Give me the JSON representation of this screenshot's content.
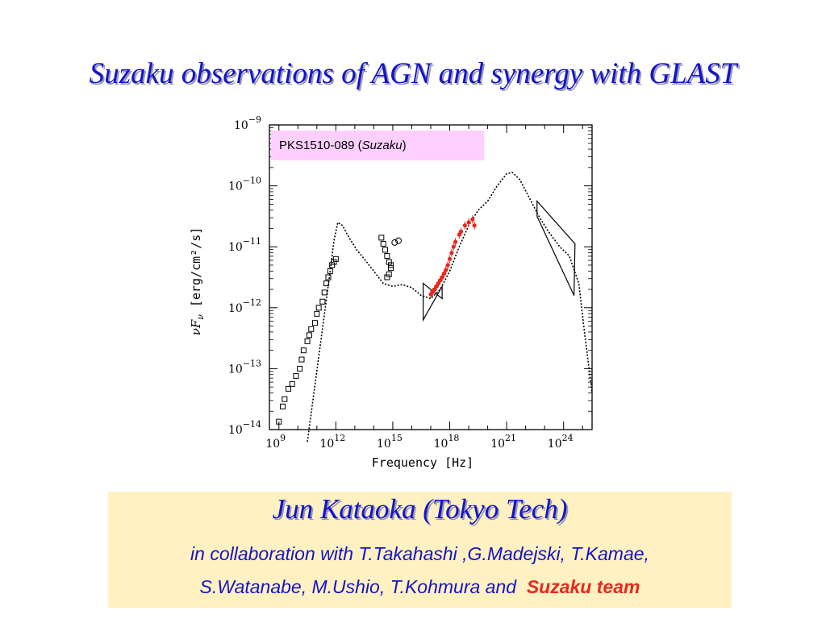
{
  "slide": {
    "title": "Suzaku observations of AGN and synergy with GLAST"
  },
  "legend": {
    "prefix": "PKS1510-089 (",
    "italic": "Suzaku",
    "suffix": ")"
  },
  "credits": {
    "author": "Jun Kataoka (Tokyo Tech)",
    "line1": "in collaboration with T.Takahashi ,G.Madejski, T.Kamae,",
    "line2_prefix": "S.Watanabe, M.Ushio, T.Kohmura and",
    "team": "Suzaku team"
  },
  "colors": {
    "title": "#1414c8",
    "team": "#e8281e",
    "legend_bg": "#ffd0ff",
    "panel_bg": "#fff1c1",
    "suzaku_points": "#e8281e"
  },
  "chart_data": {
    "type": "scatter",
    "title": "",
    "xlabel": "Frequency",
    "xunit": "Hz",
    "ylabel_symbol": "νF",
    "ylabel_sub": "ν",
    "yunit": "erg/cm²/s",
    "xscale": "log",
    "yscale": "log",
    "xlim_log": [
      8.5,
      25.5
    ],
    "ylim_log": [
      -14,
      -9
    ],
    "xticks": [
      {
        "exp": "9",
        "log": 9
      },
      {
        "exp": "12",
        "log": 12
      },
      {
        "exp": "15",
        "log": 15
      },
      {
        "exp": "18",
        "log": 18
      },
      {
        "exp": "21",
        "log": 21
      },
      {
        "exp": "24",
        "log": 24
      }
    ],
    "yticks": [
      {
        "exp": "−9",
        "log": -9
      },
      {
        "exp": "−10",
        "log": -10
      },
      {
        "exp": "−11",
        "log": -11
      },
      {
        "exp": "−12",
        "log": -12
      },
      {
        "exp": "−13",
        "log": -13
      },
      {
        "exp": "−14",
        "log": -14
      }
    ],
    "series": [
      {
        "kind": "archival-radio-optical",
        "marker": "open-square",
        "color": "#000000",
        "points": [
          [
            9.0,
            -13.87
          ],
          [
            9.2,
            -13.62
          ],
          [
            9.3,
            -13.5
          ],
          [
            9.5,
            -13.33
          ],
          [
            9.7,
            -13.25
          ],
          [
            9.9,
            -13.12
          ],
          [
            10.1,
            -13.0
          ],
          [
            10.2,
            -12.85
          ],
          [
            10.3,
            -12.7
          ],
          [
            10.5,
            -12.55
          ],
          [
            10.6,
            -12.45
          ],
          [
            10.7,
            -12.35
          ],
          [
            10.9,
            -12.25
          ],
          [
            11.0,
            -12.1
          ],
          [
            11.1,
            -12.0
          ],
          [
            11.3,
            -11.9
          ],
          [
            11.4,
            -11.75
          ],
          [
            11.5,
            -11.6
          ],
          [
            11.6,
            -11.5
          ],
          [
            11.7,
            -11.4
          ],
          [
            11.8,
            -11.3
          ],
          [
            11.9,
            -11.25
          ],
          [
            12.0,
            -11.2
          ],
          [
            14.4,
            -10.85
          ],
          [
            14.5,
            -10.95
          ],
          [
            14.6,
            -11.05
          ],
          [
            14.7,
            -11.15
          ],
          [
            14.8,
            -11.25
          ],
          [
            14.9,
            -11.35
          ],
          [
            14.7,
            -11.5
          ],
          [
            14.8,
            -11.45
          ],
          [
            14.9,
            -11.3
          ]
        ]
      },
      {
        "kind": "archival-uv",
        "marker": "open-circle",
        "color": "#000000",
        "points": [
          [
            15.1,
            -10.93
          ],
          [
            15.3,
            -10.9
          ]
        ]
      },
      {
        "kind": "suzaku",
        "marker": "filled-circle",
        "color": "#e8281e",
        "points": [
          [
            17.0,
            -11.78
          ],
          [
            17.1,
            -11.74
          ],
          [
            17.2,
            -11.7
          ],
          [
            17.3,
            -11.65
          ],
          [
            17.4,
            -11.6
          ],
          [
            17.5,
            -11.55
          ],
          [
            17.6,
            -11.5
          ],
          [
            17.7,
            -11.44
          ],
          [
            17.8,
            -11.38
          ],
          [
            17.9,
            -11.3
          ],
          [
            18.0,
            -11.2
          ],
          [
            18.1,
            -11.1
          ],
          [
            18.2,
            -11.0
          ],
          [
            18.3,
            -10.92
          ],
          [
            18.5,
            -10.8
          ],
          [
            18.6,
            -10.75
          ],
          [
            18.8,
            -10.65
          ],
          [
            19.0,
            -10.6
          ],
          [
            19.2,
            -10.55
          ],
          [
            19.3,
            -10.65
          ]
        ]
      }
    ]
  }
}
